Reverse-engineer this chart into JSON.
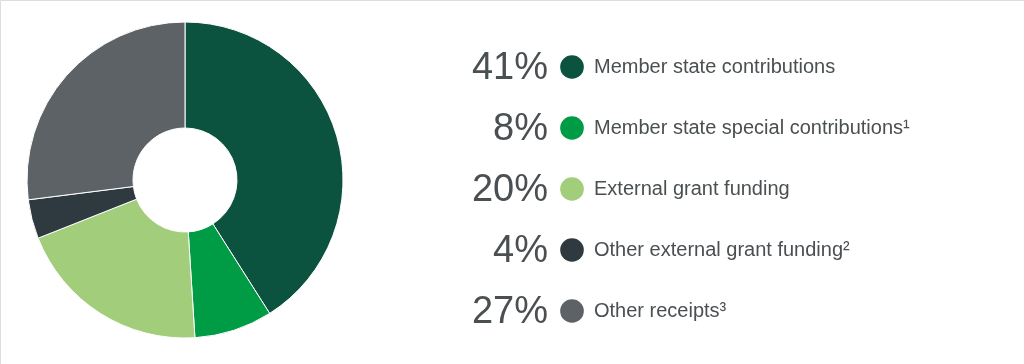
{
  "chart_data": {
    "type": "donut",
    "categories": [
      "Member state contributions",
      "Member state special contributions¹",
      "External grant funding",
      "Other external grant funding²",
      "Other receipts³"
    ],
    "values": [
      41,
      8,
      20,
      4,
      27
    ],
    "value_labels": [
      "41%",
      "8%",
      "20%",
      "4%",
      "27%"
    ],
    "colors": [
      "#0b533f",
      "#009b45",
      "#a2cd7a",
      "#2f3a40",
      "#5d6266"
    ],
    "legend": "right"
  }
}
